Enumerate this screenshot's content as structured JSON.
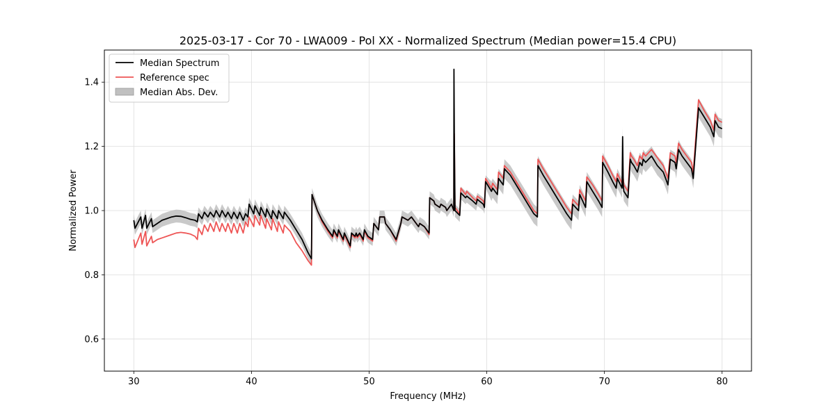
{
  "chart_data": {
    "type": "line",
    "title": "2025-03-17 - Cor 70 - LWA009 - Pol XX - Normalized Spectrum (Median power=15.4 CPU)",
    "xlabel": "Frequency (MHz)",
    "ylabel": "Normalized Power",
    "xlim": [
      27.5,
      82.5
    ],
    "ylim": [
      0.5,
      1.5
    ],
    "xticks": [
      30,
      40,
      50,
      60,
      70,
      80
    ],
    "yticks": [
      0.6,
      0.8,
      1.0,
      1.2,
      1.4
    ],
    "grid": true,
    "legend_position": "top-left",
    "colors": {
      "median": "#000000",
      "reference": "#ee5555",
      "mad_fill": "#c0c0c0"
    },
    "legend": [
      "Median Spectrum",
      "Reference spec",
      "Median Abs. Dev."
    ],
    "series": [
      {
        "name": "Median Spectrum",
        "x": [
          30.0,
          30.1,
          30.6,
          30.7,
          31.0,
          31.1,
          31.5,
          31.6,
          32.0,
          32.4,
          32.8,
          33.2,
          33.6,
          34.0,
          34.4,
          34.8,
          35.2,
          35.4,
          35.5,
          35.8,
          36.0,
          36.3,
          36.5,
          36.8,
          37.0,
          37.3,
          37.5,
          37.8,
          38.0,
          38.3,
          38.5,
          38.8,
          39.0,
          39.3,
          39.5,
          39.7,
          39.8,
          40.2,
          40.3,
          40.7,
          40.8,
          41.2,
          41.3,
          41.7,
          41.8,
          42.2,
          42.3,
          42.7,
          42.8,
          43.3,
          43.8,
          44.3,
          44.8,
          45.1,
          45.15,
          45.6,
          46.0,
          46.5,
          46.9,
          47.0,
          47.3,
          47.4,
          47.8,
          47.9,
          48.4,
          48.5,
          48.8,
          48.9,
          49.0,
          49.2,
          49.5,
          49.6,
          49.9,
          50.3,
          50.4,
          50.8,
          50.9,
          51.3,
          51.4,
          51.8,
          52.3,
          52.7,
          52.8,
          53.3,
          53.6,
          53.8,
          54.0,
          54.2,
          54.3,
          54.7,
          55.1,
          55.15,
          55.5,
          55.6,
          56.0,
          56.1,
          56.5,
          56.6,
          57.0,
          57.2,
          57.21,
          57.24,
          57.3,
          57.7,
          57.8,
          58.2,
          58.3,
          58.8,
          59.1,
          59.2,
          59.7,
          59.8,
          59.9,
          60.4,
          60.5,
          60.9,
          61.0,
          61.4,
          61.5,
          62.0,
          62.5,
          63.0,
          63.5,
          64.0,
          64.3,
          64.35,
          64.8,
          65.3,
          65.8,
          66.3,
          66.8,
          67.2,
          67.3,
          67.8,
          67.9,
          68.4,
          68.5,
          69.0,
          69.5,
          69.8,
          69.85,
          70.3,
          70.7,
          71.0,
          71.1,
          71.5,
          71.55,
          71.6,
          71.65,
          72.0,
          72.2,
          72.3,
          72.5,
          72.8,
          73.0,
          73.2,
          73.3,
          73.5,
          74.0,
          74.5,
          75.0,
          75.3,
          75.4,
          75.6,
          76.0,
          76.1,
          76.3,
          76.6,
          77.0,
          77.4,
          77.5,
          77.55,
          78.0,
          78.5,
          79.0,
          79.3,
          79.4,
          79.7,
          80.0
        ],
        "values": [
          0.97,
          0.945,
          0.98,
          0.945,
          0.985,
          0.945,
          0.975,
          0.95,
          0.96,
          0.97,
          0.975,
          0.98,
          0.983,
          0.982,
          0.978,
          0.973,
          0.97,
          0.965,
          0.99,
          0.975,
          0.995,
          0.98,
          0.995,
          0.98,
          1.0,
          0.98,
          1.0,
          0.98,
          0.995,
          0.975,
          0.995,
          0.975,
          0.995,
          0.97,
          0.99,
          0.98,
          1.02,
          0.99,
          1.015,
          0.985,
          1.01,
          0.98,
          1.005,
          0.975,
          1.0,
          0.975,
          1.0,
          0.975,
          0.995,
          0.97,
          0.94,
          0.91,
          0.87,
          0.85,
          1.05,
          1.0,
          0.97,
          0.94,
          0.92,
          0.94,
          0.92,
          0.94,
          0.91,
          0.93,
          0.89,
          0.93,
          0.92,
          0.93,
          0.92,
          0.93,
          0.91,
          0.94,
          0.92,
          0.91,
          0.96,
          0.94,
          0.98,
          0.98,
          0.96,
          0.94,
          0.91,
          0.96,
          0.98,
          0.97,
          0.98,
          0.97,
          0.96,
          0.95,
          0.96,
          0.95,
          0.93,
          1.04,
          1.03,
          1.02,
          1.01,
          1.02,
          1.01,
          1.0,
          1.02,
          1.0,
          1.44,
          1.24,
          1.0,
          0.985,
          1.055,
          1.04,
          1.045,
          1.03,
          1.02,
          1.035,
          1.02,
          1.01,
          1.09,
          1.06,
          1.07,
          1.05,
          1.1,
          1.08,
          1.13,
          1.11,
          1.08,
          1.05,
          1.02,
          0.99,
          0.98,
          1.14,
          1.11,
          1.08,
          1.05,
          1.02,
          0.99,
          0.97,
          1.02,
          1.0,
          1.05,
          1.01,
          1.09,
          1.06,
          1.03,
          1.01,
          1.15,
          1.12,
          1.09,
          1.07,
          1.1,
          1.07,
          1.23,
          1.08,
          1.06,
          1.04,
          1.16,
          1.15,
          1.14,
          1.12,
          1.15,
          1.14,
          1.16,
          1.15,
          1.17,
          1.14,
          1.12,
          1.09,
          1.08,
          1.16,
          1.15,
          1.13,
          1.19,
          1.17,
          1.15,
          1.13,
          1.11,
          1.1,
          1.32,
          1.29,
          1.26,
          1.23,
          1.28,
          1.26,
          1.255
        ]
      },
      {
        "name": "Reference spec",
        "x": [
          30.0,
          30.1,
          30.6,
          30.7,
          31.0,
          31.1,
          31.5,
          31.6,
          32.0,
          32.4,
          32.8,
          33.2,
          33.6,
          34.0,
          34.4,
          34.8,
          35.2,
          35.4,
          35.5,
          35.8,
          36.0,
          36.3,
          36.5,
          36.8,
          37.0,
          37.3,
          37.5,
          37.8,
          38.0,
          38.3,
          38.5,
          38.8,
          39.0,
          39.3,
          39.5,
          39.7,
          39.8,
          40.2,
          40.3,
          40.7,
          40.8,
          41.2,
          41.3,
          41.7,
          41.8,
          42.2,
          42.3,
          42.7,
          42.8,
          43.3,
          43.8,
          44.3,
          44.8,
          45.1,
          45.15,
          45.6,
          46.0,
          46.5,
          46.9,
          47.0,
          47.3,
          47.4,
          47.8,
          47.9,
          48.4,
          48.5,
          48.8,
          48.9,
          49.0,
          49.2,
          49.5,
          49.6,
          49.9,
          50.3,
          50.4,
          50.8,
          50.9,
          51.3,
          51.4,
          51.8,
          52.3,
          52.7,
          52.8,
          53.3,
          53.6,
          53.8,
          54.0,
          54.2,
          54.3,
          54.7,
          55.1,
          55.15,
          55.5,
          55.6,
          56.0,
          56.1,
          56.5,
          56.6,
          57.0,
          57.2,
          57.21,
          57.24,
          57.3,
          57.7,
          57.8,
          58.2,
          58.3,
          58.8,
          59.1,
          59.2,
          59.7,
          59.8,
          59.9,
          60.4,
          60.5,
          60.9,
          61.0,
          61.4,
          61.5,
          62.0,
          62.5,
          63.0,
          63.5,
          64.0,
          64.3,
          64.35,
          64.8,
          65.3,
          65.8,
          66.3,
          66.8,
          67.2,
          67.3,
          67.8,
          67.9,
          68.4,
          68.5,
          69.0,
          69.5,
          69.8,
          69.85,
          70.3,
          70.7,
          71.0,
          71.1,
          71.5,
          71.55,
          71.6,
          71.65,
          72.0,
          72.2,
          72.3,
          72.5,
          72.8,
          73.0,
          73.2,
          73.3,
          73.5,
          74.0,
          74.5,
          75.0,
          75.3,
          75.4,
          75.6,
          76.0,
          76.1,
          76.3,
          76.6,
          77.0,
          77.4,
          77.5,
          77.55,
          78.0,
          78.5,
          79.0,
          79.3,
          79.4,
          79.7,
          80.0
        ],
        "values": [
          0.91,
          0.885,
          0.93,
          0.895,
          0.935,
          0.89,
          0.92,
          0.9,
          0.91,
          0.915,
          0.92,
          0.925,
          0.93,
          0.932,
          0.93,
          0.927,
          0.92,
          0.91,
          0.945,
          0.925,
          0.955,
          0.935,
          0.96,
          0.935,
          0.965,
          0.935,
          0.96,
          0.935,
          0.96,
          0.93,
          0.96,
          0.93,
          0.96,
          0.93,
          0.965,
          0.95,
          0.98,
          0.95,
          0.985,
          0.955,
          0.985,
          0.945,
          0.975,
          0.94,
          0.975,
          0.935,
          0.965,
          0.93,
          0.955,
          0.935,
          0.9,
          0.875,
          0.845,
          0.83,
          1.05,
          1.0,
          0.965,
          0.935,
          0.915,
          0.935,
          0.915,
          0.935,
          0.905,
          0.925,
          0.885,
          0.925,
          0.915,
          0.925,
          0.915,
          0.925,
          0.905,
          0.935,
          0.915,
          0.905,
          0.96,
          0.94,
          0.98,
          0.98,
          0.96,
          0.94,
          0.905,
          0.96,
          0.98,
          0.97,
          0.98,
          0.97,
          0.96,
          0.95,
          0.96,
          0.95,
          0.925,
          1.04,
          1.03,
          1.02,
          1.01,
          1.02,
          1.01,
          1.0,
          1.02,
          1.0,
          1.24,
          1.24,
          1.01,
          0.99,
          1.07,
          1.05,
          1.06,
          1.04,
          1.03,
          1.045,
          1.03,
          1.02,
          1.1,
          1.07,
          1.085,
          1.065,
          1.12,
          1.1,
          1.14,
          1.12,
          1.09,
          1.06,
          1.03,
          1.0,
          0.99,
          1.16,
          1.13,
          1.1,
          1.07,
          1.04,
          1.01,
          0.99,
          1.035,
          1.015,
          1.065,
          1.03,
          1.105,
          1.08,
          1.05,
          1.03,
          1.17,
          1.14,
          1.11,
          1.09,
          1.115,
          1.085,
          1.09,
          1.1,
          1.08,
          1.06,
          1.18,
          1.17,
          1.16,
          1.14,
          1.17,
          1.16,
          1.18,
          1.17,
          1.19,
          1.165,
          1.14,
          1.11,
          1.1,
          1.18,
          1.17,
          1.15,
          1.21,
          1.19,
          1.17,
          1.15,
          1.13,
          1.12,
          1.345,
          1.31,
          1.28,
          1.25,
          1.3,
          1.28,
          1.275
        ]
      }
    ],
    "mad_band_halfwidth": 0.02
  }
}
